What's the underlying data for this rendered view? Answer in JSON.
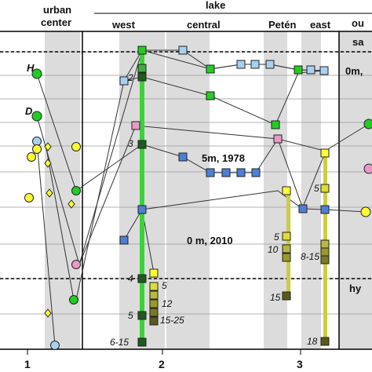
{
  "chart_data": {
    "type": "scatter",
    "header": {
      "urban_center": [
        "urban",
        "center"
      ],
      "lake": "lake",
      "west": "west",
      "central": "central",
      "peten": "Petén",
      "east": "east",
      "outside_1": "ou",
      "outside_2": "sa"
    },
    "xticks": [
      "1",
      "2",
      "3"
    ],
    "annotations": {
      "surface": "0m,",
      "profile_1978": "5m, 1978",
      "profile_2010": "0 m, 2010",
      "hypo": "hy",
      "H": "H",
      "D": "D"
    },
    "colors": {
      "green": "#22cc22",
      "lightblue": "#a8d0f0",
      "blue": "#4d7fd6",
      "pink": "#e899c8",
      "yellow": "#ffff33",
      "darkgreen": "#1f5a1f",
      "olive": "#9a9a2a",
      "core_green": "#3ad23a",
      "core_yellow": "#cccc44",
      "shade": "#dcdcdc"
    },
    "markers": [
      {
        "series": "green",
        "shape": "circle",
        "x": 0.0,
        "y": 0.5
      },
      {
        "series": "yellow",
        "shape": "circle",
        "x": 0.0,
        "y": 3.2
      },
      {
        "series": "green",
        "shape": "circle",
        "x": 0.18,
        "y": 1.2
      },
      {
        "series": "green",
        "shape": "circle",
        "x": 0.3,
        "y": 6.5
      },
      {
        "series": "lightblue",
        "shape": "circle",
        "x": 0.1,
        "y": 3.5
      },
      {
        "series": "yellow",
        "shape": "circle",
        "x": 0.1,
        "y": 5.5
      },
      {
        "series": "yellow",
        "shape": "circle",
        "x": 0.2,
        "y": 4.2
      },
      {
        "series": "lightblue",
        "shape": "circle",
        "x": 0.28,
        "y": 9.0
      },
      {
        "series": "yellow",
        "shape": "diamond",
        "x": 0.3,
        "y": 3.5
      },
      {
        "series": "yellow",
        "shape": "diamond",
        "x": 0.35,
        "y": 6.8
      },
      {
        "series": "green",
        "shape": "circle",
        "x": 0.62,
        "y": 5.0
      },
      {
        "series": "yellow",
        "shape": "circle",
        "x": 0.62,
        "y": 3.5
      },
      {
        "series": "pink",
        "shape": "circle",
        "x": 0.62,
        "y": 7.8
      },
      {
        "series": "green",
        "shape": "circle",
        "x": 0.65,
        "y": 2.1
      },
      {
        "series": "yellow",
        "shape": "circle",
        "x": 0.5,
        "y": 2.1
      },
      {
        "series": "green",
        "shape": "circle",
        "x": 0.58,
        "y": 8.2
      },
      {
        "series": "lightblue",
        "shape": "square",
        "x": 1.9,
        "y": 1.8
      },
      {
        "series": "green",
        "shape": "square",
        "x": 2.05,
        "y": 0
      },
      {
        "series": "lightblue",
        "shape": "square",
        "x": 2.3,
        "y": 0.5
      },
      {
        "series": "green",
        "shape": "square",
        "x": 2.45,
        "y": 1.2
      },
      {
        "series": "green",
        "shape": "square",
        "x": 2.65,
        "y": 1.0
      },
      {
        "series": "lightblue",
        "shape": "square",
        "x": 2.9,
        "y": 1.0
      },
      {
        "series": "lightblue",
        "shape": "square",
        "x": 2.97,
        "y": 1.0
      }
    ],
    "cores": [
      {
        "x": 1.2,
        "color": "core_green",
        "y_from": 0,
        "y_to": 14.5
      },
      {
        "x": 2.4,
        "color": "core_yellow",
        "y_from": 6.7,
        "y_to": 11.5
      },
      {
        "x": 2.82,
        "color": "core_yellow",
        "y_from": 4.6,
        "y_to": 14.5
      }
    ],
    "depth_labels": [
      {
        "text": "2",
        "x": 1.2,
        "y": 1.9
      },
      {
        "text": "3",
        "x": 1.2,
        "y": 4.2
      },
      {
        "text": "4",
        "x": 1.2,
        "y": 10.4
      },
      {
        "text": "5",
        "x": 1.2,
        "y": 12.5
      },
      {
        "text": "6-15",
        "x": 1.2,
        "y": 14.5
      },
      {
        "text": "5",
        "x": 1.55,
        "y": 10.7
      },
      {
        "text": "12",
        "x": 1.55,
        "y": 11.8
      },
      {
        "text": "15-25",
        "x": 1.55,
        "y": 12.5
      },
      {
        "text": "5",
        "x": 2.4,
        "y": 8.2
      },
      {
        "text": "10",
        "x": 2.4,
        "y": 8.9
      },
      {
        "text": "15",
        "x": 2.4,
        "y": 11.2
      },
      {
        "text": "5",
        "x": 2.82,
        "y": 6.7
      },
      {
        "text": "8-15",
        "x": 2.82,
        "y": 9.0
      },
      {
        "text": "18",
        "x": 2.82,
        "y": 14.5
      }
    ]
  }
}
